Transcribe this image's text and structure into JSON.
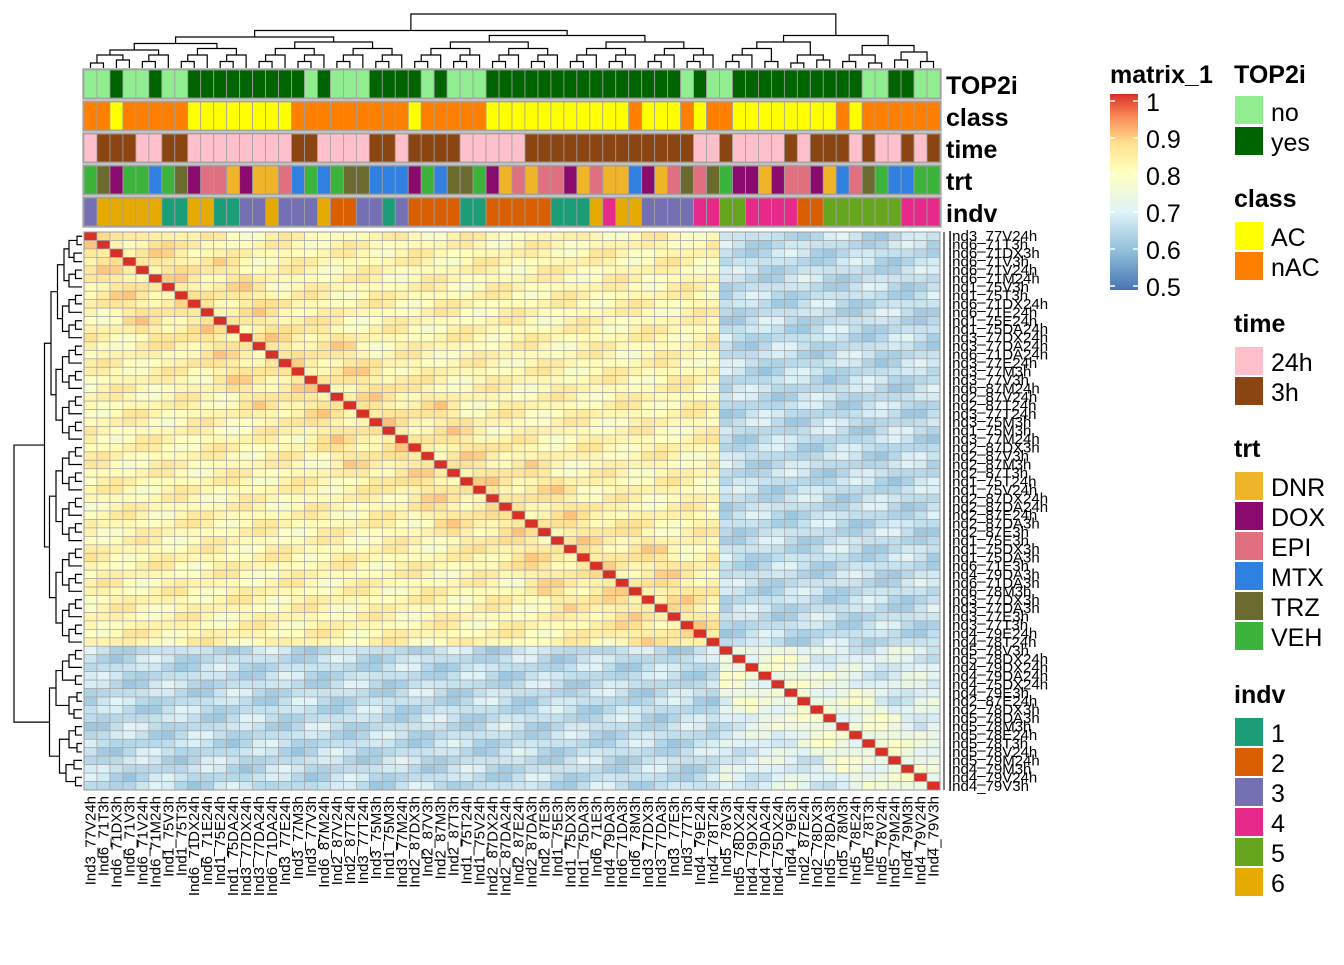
{
  "chart_data": {
    "type": "heatmap",
    "title": "",
    "color_legend": {
      "title": "matrix_1",
      "ticks": [
        "1",
        "0.9",
        "0.8",
        "0.7",
        "0.6",
        "0.5"
      ],
      "range": [
        0.5,
        1
      ],
      "colors": [
        "#4575b4",
        "#91bfdb",
        "#e0f3f8",
        "#ffffbf",
        "#fee090",
        "#fc8d59",
        "#d73027"
      ]
    },
    "annotation_rows": [
      "TOP2i",
      "class",
      "time",
      "trt",
      "indv"
    ],
    "legends": {
      "TOP2i": {
        "title": "TOP2i",
        "labels": [
          "no",
          "yes"
        ],
        "colors": [
          "#90ee90",
          "#006400"
        ]
      },
      "class": {
        "title": "class",
        "labels": [
          "AC",
          "nAC"
        ],
        "colors": [
          "#ffff00",
          "#ff7f00"
        ]
      },
      "time": {
        "title": "time",
        "labels": [
          "24h",
          "3h"
        ],
        "colors": [
          "#ffc0cb",
          "#8b4513"
        ]
      },
      "trt": {
        "title": "trt",
        "labels": [
          "DNR",
          "DOX",
          "EPI",
          "MTX",
          "TRZ",
          "VEH"
        ],
        "colors": [
          "#f0b429",
          "#8b0a6e",
          "#e07080",
          "#2f80e0",
          "#6b6b2f",
          "#3cb43c"
        ]
      },
      "indv": {
        "title": "indv",
        "labels": [
          "1",
          "2",
          "3",
          "4",
          "5",
          "6"
        ],
        "colors": [
          "#1b9e77",
          "#d95f02",
          "#7570b3",
          "#e7298a",
          "#66a61e",
          "#e6ab02"
        ]
      }
    },
    "samples": [
      "Ind3_77V24h",
      "Ind6_71T3h",
      "Ind6_71DX3h",
      "Ind6_71V3h",
      "Ind6_71V24h",
      "Ind6_71M24h",
      "Ind1_75V3h",
      "Ind1_75T3h",
      "Ind6_71DX24h",
      "Ind6_71E24h",
      "Ind1_75E24h",
      "Ind1_75DA24h",
      "Ind3_77DX24h",
      "Ind3_77DA24h",
      "Ind6_71DA24h",
      "Ind3_77E24h",
      "Ind3_77M3h",
      "Ind3_77V3h",
      "Ind6_87M24h",
      "Ind2_87V24h",
      "Ind2_87T24h",
      "Ind3_77T24h",
      "Ind3_75M3h",
      "Ind1_75M3h",
      "Ind3_77M24h",
      "Ind2_87DX3h",
      "Ind2_87V3h",
      "Ind2_87M3h",
      "Ind2_87T3h",
      "Ind1_75T24h",
      "Ind1_75V24h",
      "Ind2_87DX24h",
      "Ind2_87DA24h",
      "Ind2_87E24h",
      "Ind2_87DA3h",
      "Ind2_87E3h",
      "Ind1_75E3h",
      "Ind1_75DX3h",
      "Ind1_75DA3h",
      "Ind6_71E3h",
      "Ind4_79DA3h",
      "Ind6_71DA3h",
      "Ind6_78M3h",
      "Ind3_77DX3h",
      "Ind3_77DA3h",
      "Ind3_77E3h",
      "Ind3_77T3h",
      "Ind4_79E24h",
      "Ind4_78T24h",
      "Ind5_78V3h",
      "Ind5_78DX24h",
      "Ind4_79DX24h",
      "Ind4_79DA24h",
      "Ind4_75DX24h",
      "Ind4_79E3h",
      "Ind2_87E24h",
      "Ind2_78DX3h",
      "Ind5_78DA3h",
      "Ind5_78M3h",
      "Ind5_78E24h",
      "Ind5_78T3h",
      "Ind5_78V24h",
      "Ind5_79M24h",
      "Ind4_79M3h",
      "Ind4_79V24h",
      "Ind4_79V3h"
    ],
    "dendrogram": {
      "cluster_a_size": 49,
      "cluster_b_size": 17
    }
  }
}
